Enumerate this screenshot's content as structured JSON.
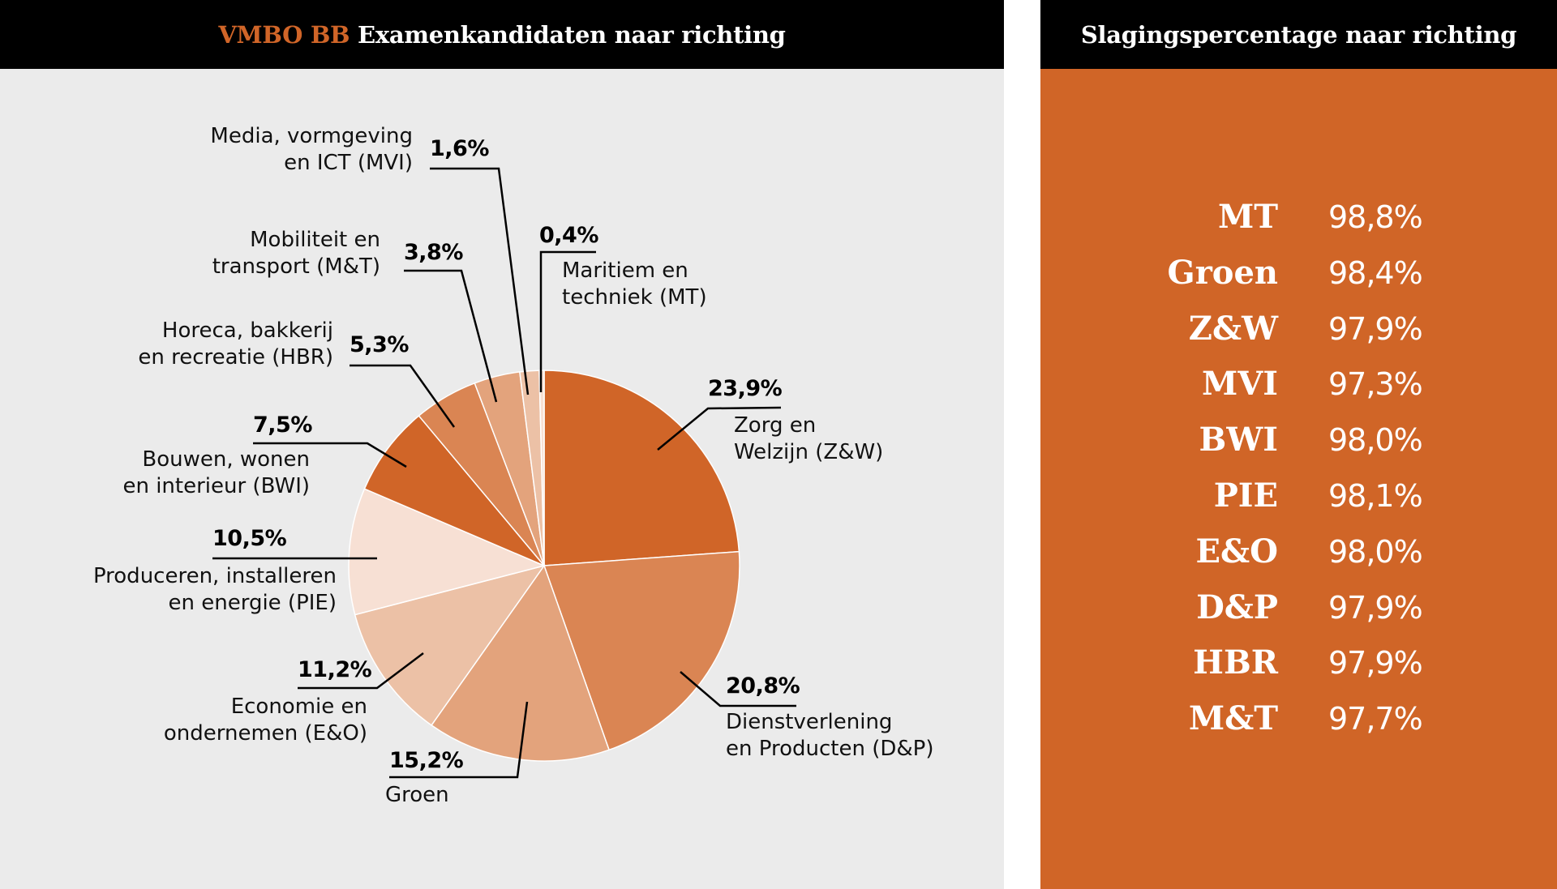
{
  "left_panel": {
    "title_accent": "VMBO BB",
    "title_rest": " Examenkandidaten naar richting"
  },
  "right_panel": {
    "title": "Slagingspercentage naar richting",
    "rows": [
      {
        "abbr": "MT",
        "pct": "98,8%"
      },
      {
        "abbr": "Groen",
        "pct": "98,4%"
      },
      {
        "abbr": "Z&W",
        "pct": "97,9%"
      },
      {
        "abbr": "MVI",
        "pct": "97,3%"
      },
      {
        "abbr": "BWI",
        "pct": "98,0%"
      },
      {
        "abbr": "PIE",
        "pct": "98,1%"
      },
      {
        "abbr": "E&O",
        "pct": "98,0%"
      },
      {
        "abbr": "D&P",
        "pct": "97,9%"
      },
      {
        "abbr": "HBR",
        "pct": "97,9%"
      },
      {
        "abbr": "M&T",
        "pct": "97,7%"
      }
    ]
  },
  "colors": {
    "accent": "#d06527",
    "panel_bg": "#ebebeb",
    "header_bg": "#000000"
  },
  "chart_data": {
    "type": "pie",
    "title": "VMBO BB Examenkandidaten naar richting",
    "start": "12 o'clock, clockwise",
    "slices": [
      {
        "key": "zw",
        "label_l1": "Zorg en",
        "label_l2": "Welzijn (Z&W)",
        "value": 23.9,
        "value_label": "23,9%",
        "color": "#d06528"
      },
      {
        "key": "dp",
        "label_l1": "Dienstverlening",
        "label_l2": "en Producten (D&P)",
        "value": 20.8,
        "value_label": "20,8%",
        "color": "#da8553"
      },
      {
        "key": "groen",
        "label_l1": "Groen",
        "label_l2": "",
        "value": 15.2,
        "value_label": "15,2%",
        "color": "#e3a37c"
      },
      {
        "key": "eo",
        "label_l1": "Economie en",
        "label_l2": "ondernemen (E&O)",
        "value": 11.2,
        "value_label": "11,2%",
        "color": "#ecc1a6"
      },
      {
        "key": "pie",
        "label_l1": "Produceren, installeren",
        "label_l2": "en energie (PIE)",
        "value": 10.5,
        "value_label": "10,5%",
        "color": "#f7e0d4"
      },
      {
        "key": "bwi",
        "label_l1": "Bouwen, wonen",
        "label_l2": "en interieur (BWI)",
        "value": 7.5,
        "value_label": "7,5%",
        "color": "#d06528"
      },
      {
        "key": "hbr",
        "label_l1": "Horeca, bakkerij",
        "label_l2": "en recreatie (HBR)",
        "value": 5.3,
        "value_label": "5,3%",
        "color": "#da8553"
      },
      {
        "key": "mt2",
        "label_l1": "Mobiliteit en",
        "label_l2": "transport (M&T)",
        "value": 3.8,
        "value_label": "3,8%",
        "color": "#e3a37c"
      },
      {
        "key": "mvi",
        "label_l1": "Media, vormgeving",
        "label_l2": "en ICT (MVI)",
        "value": 1.6,
        "value_label": "1,6%",
        "color": "#ecc1a6"
      },
      {
        "key": "mt",
        "label_l1": "Maritiem en",
        "label_l2": "techniek (MT)",
        "value": 0.4,
        "value_label": "0,4%",
        "color": "#f7e0d4"
      }
    ]
  }
}
